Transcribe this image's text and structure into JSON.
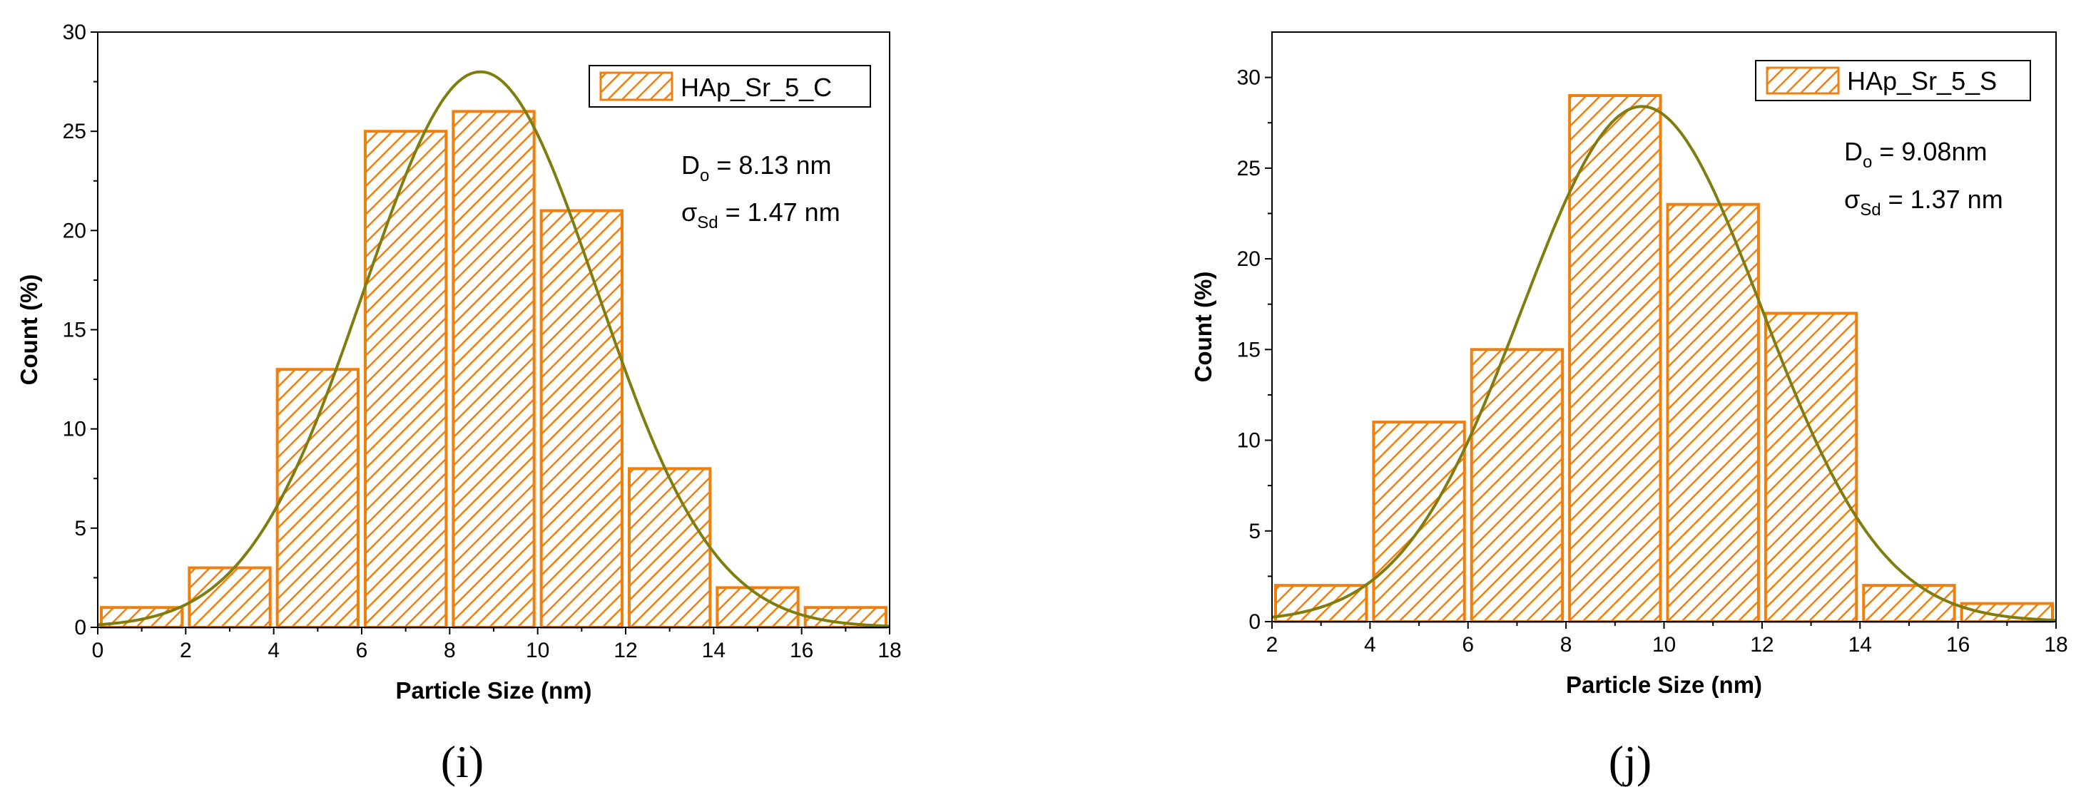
{
  "colors": {
    "bar_stroke": "#F07F0E",
    "hatch": "#F07F0E",
    "curve": "#7E7D0E",
    "legend_border": "#000000"
  },
  "chart_data": [
    {
      "type": "bar",
      "panel_label": "(i)",
      "xlabel": "Particle Size (nm)",
      "ylabel": "Count (%)",
      "xlim": [
        0,
        18
      ],
      "ylim": [
        0,
        30
      ],
      "xticks": [
        0,
        2,
        4,
        6,
        8,
        10,
        12,
        14,
        16,
        18
      ],
      "yticks": [
        0,
        5,
        10,
        15,
        20,
        25,
        30
      ],
      "bin_edges": [
        0,
        2,
        4,
        6,
        8,
        10,
        12,
        14,
        16,
        18
      ],
      "values": [
        1,
        3,
        13,
        25,
        26,
        21,
        8,
        2,
        1
      ],
      "fit": {
        "type": "gaussian",
        "mean": 8.7,
        "sigma": 2.65,
        "peak": 28
      },
      "legend": {
        "label": "HAp_Sr_5_C",
        "position": "top-right"
      },
      "annotations": {
        "d_symbol": "D",
        "d_sub": "o",
        "d_text": " = 8.13 nm",
        "s_symbol": "σ",
        "s_sub": "Sd",
        "s_text": " = 1.47 nm"
      }
    },
    {
      "type": "bar",
      "panel_label": "(j)",
      "xlabel": "Particle Size (nm)",
      "ylabel": "Count (%)",
      "xlim": [
        2,
        18
      ],
      "ylim": [
        0,
        32.5
      ],
      "xticks": [
        2,
        4,
        6,
        8,
        10,
        12,
        14,
        16,
        18
      ],
      "yticks": [
        0,
        5,
        10,
        15,
        20,
        25,
        30
      ],
      "bin_edges": [
        2,
        4,
        6,
        8,
        10,
        12,
        14,
        16,
        18
      ],
      "values": [
        2,
        11,
        15,
        29,
        23,
        17,
        2,
        1
      ],
      "fit": {
        "type": "gaussian",
        "mean": 9.55,
        "sigma": 2.45,
        "peak": 28.4
      },
      "legend": {
        "label": "HAp_Sr_5_S",
        "position": "top-right"
      },
      "annotations": {
        "d_symbol": "D",
        "d_sub": "o",
        "d_text": " = 9.08nm",
        "s_symbol": "σ",
        "s_sub": "Sd",
        "s_text": " = 1.37 nm"
      }
    }
  ]
}
